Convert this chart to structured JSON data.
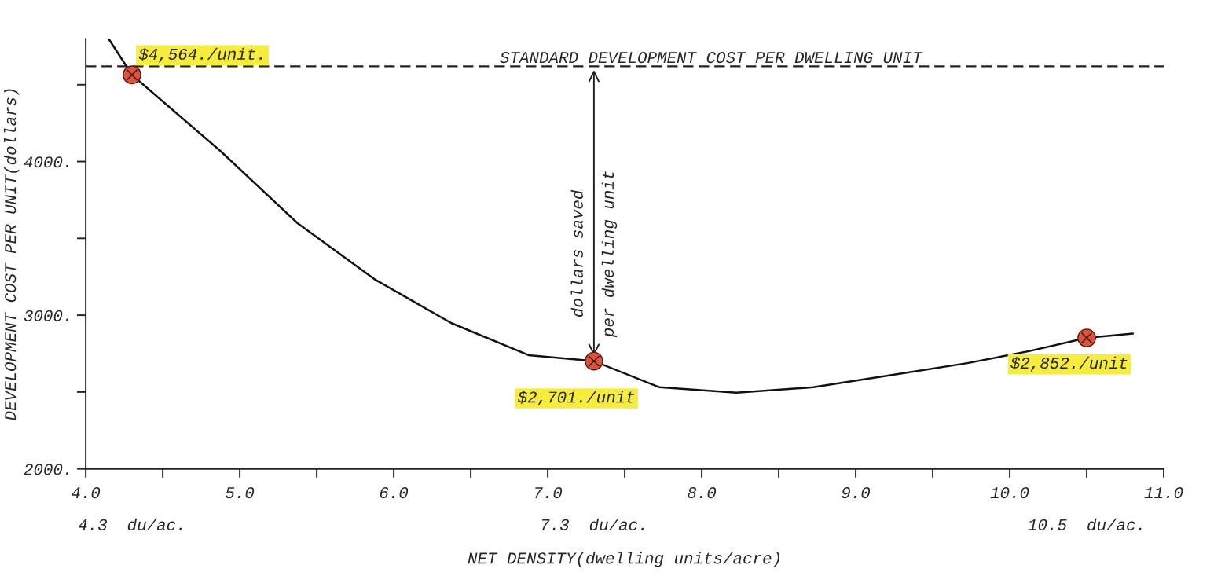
{
  "chart_data": {
    "type": "line",
    "xlabel": "NET DENSITY(dwelling units/acre)",
    "ylabel": "DEVELOPMENT COST PER UNIT(dollars)",
    "xlim": [
      4.0,
      11.0
    ],
    "xticks": [
      {
        "value": 4.0,
        "label": "4.0"
      },
      {
        "value": 4.5,
        "label": null
      },
      {
        "value": 5.0,
        "label": "5.0"
      },
      {
        "value": 5.5,
        "label": null
      },
      {
        "value": 6.0,
        "label": "6.0"
      },
      {
        "value": 6.5,
        "label": null
      },
      {
        "value": 7.0,
        "label": "7.0"
      },
      {
        "value": 7.5,
        "label": null
      },
      {
        "value": 8.0,
        "label": "8.0"
      },
      {
        "value": 8.5,
        "label": null
      },
      {
        "value": 9.0,
        "label": "9.0"
      },
      {
        "value": 9.5,
        "label": null
      },
      {
        "value": 10.0,
        "label": "10.0"
      },
      {
        "value": 10.5,
        "label": null
      },
      {
        "value": 11.0,
        "label": "11.0"
      }
    ],
    "ylim": [
      2000,
      4800
    ],
    "yticks": [
      {
        "value": 2000,
        "label": "2000."
      },
      {
        "value": 2500,
        "label": null
      },
      {
        "value": 3000,
        "label": "3000."
      },
      {
        "value": 3500,
        "label": null
      },
      {
        "value": 4000,
        "label": "4000."
      },
      {
        "value": 4500,
        "label": null
      }
    ],
    "grid": false,
    "series": [
      {
        "type": "line",
        "color": "#111111",
        "line_style": "solid",
        "x": [
          4.15,
          4.3,
          4.875,
          5.375,
          5.875,
          6.375,
          6.875,
          7.3,
          7.725,
          8.225,
          8.725,
          9.225,
          9.725,
          10.125,
          10.5,
          10.8
        ],
        "values": [
          4797,
          4564,
          4068,
          3599,
          3234,
          2948,
          2740,
          2701,
          2531,
          2495,
          2531,
          2609,
          2688,
          2766,
          2852,
          2880
        ]
      },
      {
        "type": "scatter",
        "color": "#d9553f",
        "marker": "circle",
        "x": [
          4.3,
          7.3,
          10.5
        ],
        "values": [
          4564,
          2701,
          2852
        ],
        "value_labels": [
          "$4,564./unit.",
          "$2,701./unit",
          "$2,852./unit"
        ]
      }
    ],
    "ref_lines": [
      {
        "axis": "y",
        "value": 4620,
        "label": "STANDARD DEVELOPMENT COST PER DWELLING UNIT",
        "color": "#222222",
        "line_style": "dashed"
      }
    ],
    "annotations": [
      "dollars saved",
      "per dwelling unit",
      "4.3  du/ac.",
      "7.3  du/ac.",
      "10.5  du/ac."
    ]
  }
}
